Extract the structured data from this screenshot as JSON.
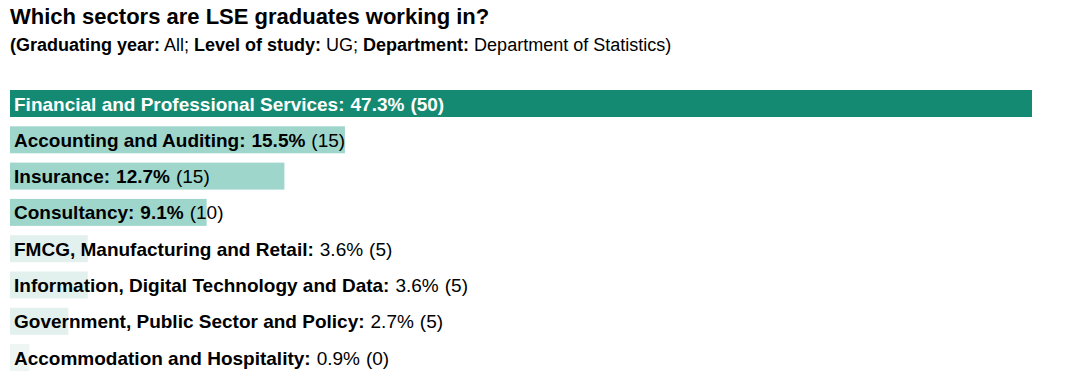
{
  "chart_data": {
    "type": "bar",
    "orientation": "horizontal",
    "title": "Which sectors are LSE graduates working in?",
    "subtitle": "(Graduating year: All; Level of study: UG; Department: Department of Statistics)",
    "categories": [
      "Financial and Professional Services:",
      "Accounting and Auditing:",
      "Insurance:",
      "Consultancy:",
      "FMCG, Manufacturing and Retail:",
      "Information, Digital Technology and Data:",
      "Government, Public Sector and Policy:",
      "Accommodation and Hospitality:"
    ],
    "values": [
      47.3,
      15.5,
      12.7,
      9.1,
      3.6,
      3.6,
      2.7,
      0.9
    ],
    "value_labels": [
      "47.3%",
      "15.5%",
      "12.7%",
      "9.1%",
      "3.6%",
      "3.6%",
      "2.7%",
      "0.9%"
    ],
    "counts": [
      50,
      15,
      15,
      10,
      5,
      5,
      5,
      0
    ],
    "count_labels": [
      "(50)",
      "(15)",
      "(15)",
      "(10)",
      "(5)",
      "(5)",
      "(5)",
      "(0)"
    ],
    "colors": [
      "#148a73",
      "#9fd6cc",
      "#9fd6cc",
      "#9fd6cc",
      "#e3f1ee",
      "#e3f1ee",
      "#e3f1ee",
      "#eef6f4"
    ],
    "xlim": [
      0,
      47.3
    ],
    "data_labels": true,
    "tick_labels": false,
    "grid": false
  }
}
